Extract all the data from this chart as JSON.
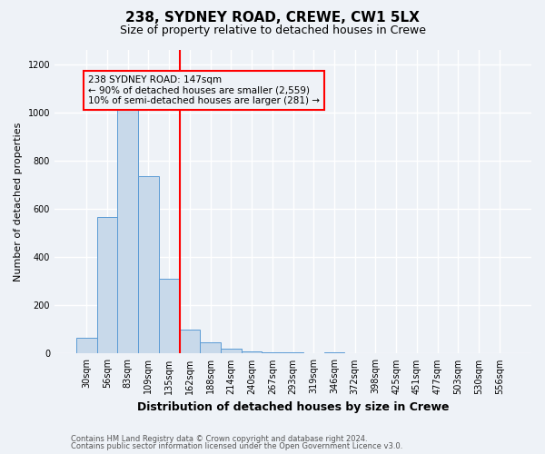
{
  "title": "238, SYDNEY ROAD, CREWE, CW1 5LX",
  "subtitle": "Size of property relative to detached houses in Crewe",
  "xlabel": "Distribution of detached houses by size in Crewe",
  "ylabel": "Number of detached properties",
  "bar_color": "#c8d9ea",
  "bar_edge_color": "#5b9bd5",
  "categories": [
    "30sqm",
    "56sqm",
    "83sqm",
    "109sqm",
    "135sqm",
    "162sqm",
    "188sqm",
    "214sqm",
    "240sqm",
    "267sqm",
    "293sqm",
    "319sqm",
    "346sqm",
    "372sqm",
    "398sqm",
    "425sqm",
    "451sqm",
    "477sqm",
    "503sqm",
    "530sqm",
    "556sqm"
  ],
  "values": [
    65,
    565,
    1020,
    735,
    310,
    100,
    45,
    20,
    10,
    5,
    5,
    0,
    5,
    0,
    0,
    0,
    0,
    0,
    0,
    0,
    0
  ],
  "red_line_index": 4.5,
  "ylim": [
    0,
    1260
  ],
  "yticks": [
    0,
    200,
    400,
    600,
    800,
    1000,
    1200
  ],
  "annotation_text": "238 SYDNEY ROAD: 147sqm\n← 90% of detached houses are smaller (2,559)\n10% of semi-detached houses are larger (281) →",
  "footnote1": "Contains HM Land Registry data © Crown copyright and database right 2024.",
  "footnote2": "Contains public sector information licensed under the Open Government Licence v3.0.",
  "background_color": "#eef2f7",
  "plot_bg_color": "#eef2f7",
  "grid_color": "#ffffff",
  "title_fontsize": 11,
  "subtitle_fontsize": 9,
  "tick_fontsize": 7,
  "ylabel_fontsize": 8,
  "xlabel_fontsize": 9
}
